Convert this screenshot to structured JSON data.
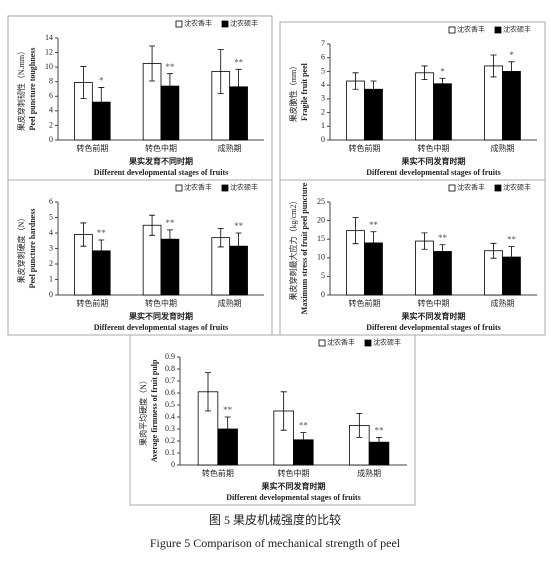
{
  "chart_data": [
    {
      "type": "bar",
      "ylabel": [
        "果皮穿刺韧性（N.mm）",
        "Peel puncture toughness"
      ],
      "xlabel": [
        "果实发育不同时期",
        "Different developmental stages of fruits"
      ],
      "categories": [
        "转色前期",
        "转色中期",
        "成熟期"
      ],
      "ylim": [
        0,
        14
      ],
      "yticks": [
        0,
        2,
        4,
        6,
        8,
        10,
        12,
        14
      ],
      "legend": "upper right",
      "series": [
        {
          "name": "沈农香丰",
          "color": "#ffffff",
          "values": [
            7.9,
            10.5,
            9.4
          ],
          "errors": [
            2.2,
            2.4,
            3.0
          ],
          "significance": [
            null,
            null,
            null
          ]
        },
        {
          "name": "沈农硕丰",
          "color": "#000000",
          "values": [
            5.2,
            7.4,
            7.3
          ],
          "errors": [
            2.0,
            1.7,
            2.4
          ],
          "significance": [
            "*",
            "**",
            "**"
          ]
        }
      ]
    },
    {
      "type": "bar",
      "ylabel": [
        "果皮脆性（mm）",
        "Fragile fruit peel"
      ],
      "xlabel": [
        "果实不同发育时期",
        "Different developmental stages of fruits"
      ],
      "categories": [
        "转色前期",
        "转色中期",
        "成熟期"
      ],
      "ylim": [
        0,
        7
      ],
      "yticks": [
        0,
        1,
        2,
        3,
        4,
        5,
        6,
        7
      ],
      "legend": "upper right",
      "series": [
        {
          "name": "沈农香丰",
          "color": "#ffffff",
          "values": [
            4.3,
            4.9,
            5.4
          ],
          "errors": [
            0.6,
            0.5,
            0.8
          ],
          "significance": [
            null,
            null,
            null
          ]
        },
        {
          "name": "沈农硕丰",
          "color": "#000000",
          "values": [
            3.7,
            4.1,
            5.0
          ],
          "errors": [
            0.6,
            0.4,
            0.7
          ],
          "significance": [
            null,
            "*",
            "*"
          ]
        }
      ]
    },
    {
      "type": "bar",
      "ylabel": [
        "果皮穿刺硬度（N）",
        "Peel puncture hardness"
      ],
      "xlabel": [
        "果实不同发育时期",
        "Different developmental stages of fruits"
      ],
      "categories": [
        "转色前期",
        "转色中期",
        "成熟期"
      ],
      "ylim": [
        0,
        6
      ],
      "yticks": [
        0,
        1,
        2,
        3,
        4,
        5,
        6
      ],
      "legend": "upper right",
      "series": [
        {
          "name": "沈农香丰",
          "color": "#ffffff",
          "values": [
            3.9,
            4.5,
            3.7
          ],
          "errors": [
            0.75,
            0.65,
            0.6
          ],
          "significance": [
            null,
            null,
            null
          ]
        },
        {
          "name": "沈农硕丰",
          "color": "#000000",
          "values": [
            2.85,
            3.6,
            3.15
          ],
          "errors": [
            0.7,
            0.6,
            0.85
          ],
          "significance": [
            "**",
            "**",
            "**"
          ]
        }
      ]
    },
    {
      "type": "bar",
      "ylabel": [
        "果皮穿刺最大应力（kg/cm2）",
        "Maximum stress of fruit peel puncture"
      ],
      "xlabel": [
        "果实不同发育时期",
        "Different developmental stages of fruits"
      ],
      "categories": [
        "转色前期",
        "转色中期",
        "成熟期"
      ],
      "ylim": [
        0,
        25
      ],
      "yticks": [
        0,
        5,
        10,
        15,
        20,
        25
      ],
      "legend": "upper right",
      "series": [
        {
          "name": "沈农香丰",
          "color": "#ffffff",
          "values": [
            17.3,
            14.5,
            11.9
          ],
          "errors": [
            3.5,
            2.2,
            2.0
          ],
          "significance": [
            null,
            null,
            null
          ]
        },
        {
          "name": "沈农硕丰",
          "color": "#000000",
          "values": [
            14.0,
            11.7,
            10.2
          ],
          "errors": [
            3.0,
            1.8,
            2.8
          ],
          "significance": [
            "**",
            "**",
            "**"
          ]
        }
      ]
    },
    {
      "type": "bar",
      "ylabel": [
        "果肉平均硬度（N）",
        "Average firmness of fruit pulp"
      ],
      "xlabel": [
        "果实不同发育时期",
        "Different developmental stages of fruits"
      ],
      "categories": [
        "转色前期",
        "转色中期",
        "成熟期"
      ],
      "ylim": [
        0,
        0.9
      ],
      "yticks": [
        0,
        0.1,
        0.2,
        0.3,
        0.4,
        0.5,
        0.6,
        0.7,
        0.8,
        0.9
      ],
      "legend": "upper right",
      "series": [
        {
          "name": "沈农香丰",
          "color": "#ffffff",
          "values": [
            0.61,
            0.45,
            0.33
          ],
          "errors": [
            0.16,
            0.16,
            0.1
          ],
          "significance": [
            null,
            null,
            null
          ]
        },
        {
          "name": "沈农硕丰",
          "color": "#000000",
          "values": [
            0.3,
            0.21,
            0.19
          ],
          "errors": [
            0.1,
            0.06,
            0.04
          ],
          "significance": [
            "**",
            "**",
            "**"
          ]
        }
      ]
    }
  ],
  "caption": {
    "zh": "图 5  果皮机械强度的比较",
    "en": "Figure 5 Comparison of mechanical strength of peel"
  }
}
